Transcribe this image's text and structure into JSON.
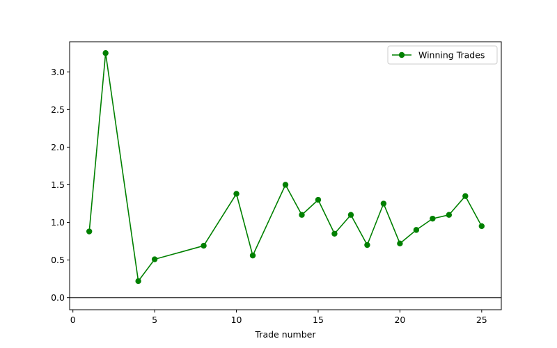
{
  "chart_data": {
    "type": "line",
    "title": "",
    "xlabel": "Trade number",
    "ylabel": "",
    "xlim": [
      -0.2,
      26.2
    ],
    "ylim": [
      -0.16,
      3.4
    ],
    "xticks": [
      0,
      5,
      10,
      15,
      20,
      25
    ],
    "xtick_labels": [
      "0",
      "5",
      "10",
      "15",
      "20",
      "25"
    ],
    "yticks": [
      0.0,
      0.5,
      1.0,
      1.5,
      2.0,
      2.5,
      3.0
    ],
    "ytick_labels": [
      "0.0",
      "0.5",
      "1.0",
      "1.5",
      "2.0",
      "2.5",
      "3.0"
    ],
    "grid": false,
    "legend_position": "top-right",
    "reference_line": {
      "y": 0,
      "color": "#000000"
    },
    "series": [
      {
        "name": "Winning Trades",
        "color": "#008000",
        "marker": "circle",
        "x": [
          1,
          2,
          4,
          5,
          8,
          10,
          11,
          13,
          14,
          15,
          16,
          17,
          18,
          19,
          20,
          21,
          22,
          23,
          24,
          25
        ],
        "y": [
          0.88,
          3.25,
          0.22,
          0.51,
          0.69,
          1.38,
          0.56,
          1.5,
          1.1,
          1.3,
          0.85,
          1.1,
          0.7,
          1.25,
          0.72,
          0.9,
          1.05,
          1.1,
          1.35,
          0.95
        ]
      }
    ]
  }
}
